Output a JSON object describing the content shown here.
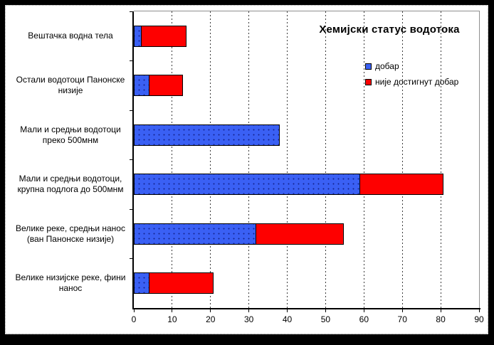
{
  "chart_data": {
    "type": "bar",
    "orientation": "horizontal",
    "stacked": true,
    "title": "Хемијски статус водотока",
    "categories": [
      "Вештачка водна тела",
      "Остали водотоци Панонске низије",
      "Мали и средњи водотоци преко 500мнм",
      "Мали и средњи водотоци, крупна подлога до 500мнм",
      "Велике реке, средњи нанос (ван Панонске низије)",
      "Велике низијске реке, фини нанос"
    ],
    "series": [
      {
        "name": "добар",
        "color": "#3a60f4",
        "values": [
          2,
          4,
          38,
          59,
          32,
          4
        ]
      },
      {
        "name": "није достигнут добар",
        "color": "#fe0000",
        "values": [
          12,
          9,
          0,
          22,
          23,
          17
        ]
      }
    ],
    "totals": [
      14,
      13,
      38,
      81,
      55,
      21
    ],
    "xlim": [
      0,
      90
    ],
    "x_ticks": [
      0,
      10,
      20,
      30,
      40,
      50,
      60,
      70,
      80,
      90
    ],
    "grid": "vertical-dashed",
    "legend_position": "inside-top-right",
    "bar_fill_patterns": [
      "dotted",
      "solid"
    ],
    "colors": {
      "good": "#3a60f4",
      "not_good": "#fe0000",
      "axis": "#000000",
      "plot_border": "#8f8f8f",
      "background": "#ffffff",
      "frame": "#000000"
    }
  }
}
